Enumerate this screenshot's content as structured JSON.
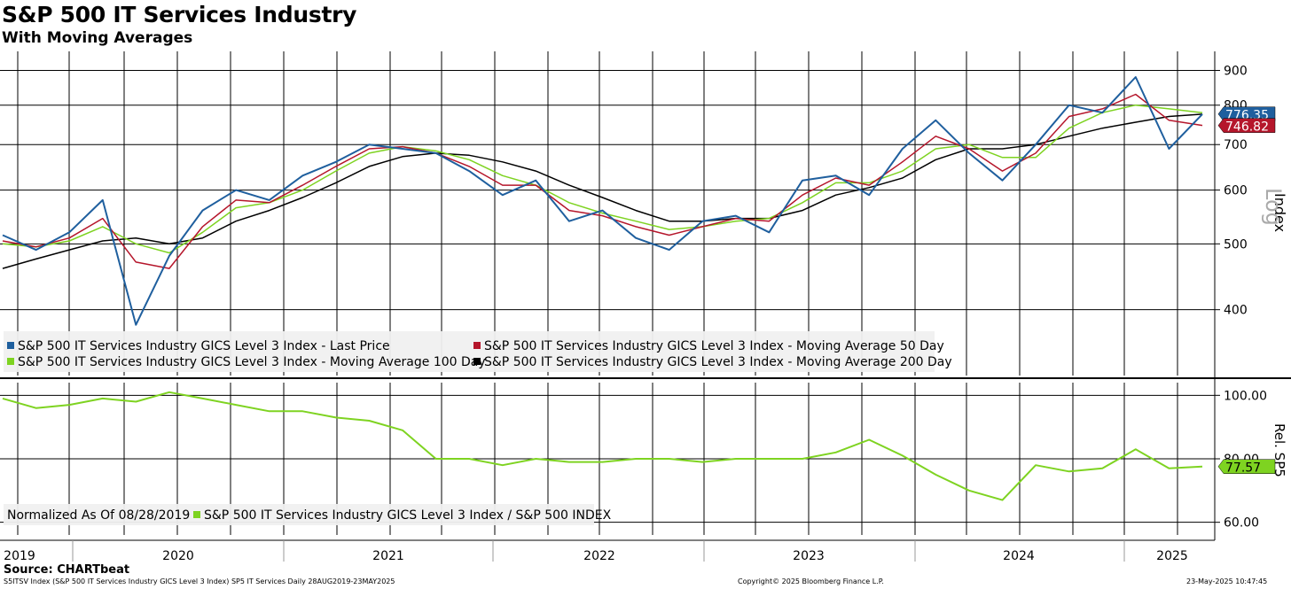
{
  "header": {
    "title": "S&P 500 IT Services Industry",
    "subtitle": "With Moving Averages"
  },
  "source": "Source: CHARTbeat",
  "footer": {
    "left": "S5ITSV Index (S&P 500 IT Services Industry GICS Level 3 Index) SP5 IT Services  Daily 28AUG2019-23MAY2025",
    "center": "Copyright© 2025 Bloomberg Finance L.P.",
    "right": "23-May-2025 10:47:45"
  },
  "colors": {
    "last_price": "#1f5f9e",
    "ma50": "#b5162b",
    "ma100": "#7ed321",
    "ma200": "#000000"
  },
  "chart_data": [
    {
      "type": "line",
      "panel": "price",
      "scale": "log",
      "axis_title": "Index",
      "axis_note": "Log",
      "ylim": [
        320,
        960
      ],
      "y_ticks": [
        "900",
        "800",
        "700",
        "600",
        "500",
        "400"
      ],
      "x_tick_labels": [
        "2019",
        "2020",
        "2021",
        "2022",
        "2023",
        "2024",
        "2025"
      ],
      "x": [
        "2019-08",
        "2019-10",
        "2019-12",
        "2020-02",
        "2020-03",
        "2020-04",
        "2020-06",
        "2020-08",
        "2020-10",
        "2020-12",
        "2021-02",
        "2021-04",
        "2021-06",
        "2021-08",
        "2021-10",
        "2021-12",
        "2022-02",
        "2022-04",
        "2022-06",
        "2022-08",
        "2022-10",
        "2022-12",
        "2023-02",
        "2023-04",
        "2023-06",
        "2023-08",
        "2023-10",
        "2023-12",
        "2024-02",
        "2024-04",
        "2024-06",
        "2024-08",
        "2024-10",
        "2024-12",
        "2025-02",
        "2025-04",
        "2025-05"
      ],
      "series": [
        {
          "name": "S&P 500 IT Services Industry GICS Level 3 Index - Last Price",
          "color_key": "last_price",
          "values": [
            515,
            490,
            520,
            580,
            380,
            480,
            560,
            600,
            580,
            630,
            660,
            700,
            690,
            680,
            640,
            590,
            620,
            540,
            560,
            510,
            490,
            540,
            550,
            520,
            620,
            630,
            590,
            690,
            760,
            680,
            620,
            700,
            800,
            780,
            880,
            690,
            776
          ]
        },
        {
          "name": "S&P 500 IT Services Industry GICS Level 3 Index - Moving Average 50 Day",
          "color_key": "ma50",
          "values": [
            505,
            495,
            510,
            545,
            470,
            460,
            530,
            580,
            575,
            610,
            650,
            690,
            695,
            680,
            650,
            610,
            610,
            560,
            550,
            530,
            515,
            530,
            545,
            540,
            590,
            625,
            610,
            660,
            720,
            690,
            640,
            680,
            770,
            790,
            830,
            760,
            747
          ]
        },
        {
          "name": "S&P 500 IT Services Industry GICS Level 3 Index - Moving Average 100 Day",
          "color_key": "ma100",
          "values": [
            500,
            495,
            505,
            530,
            500,
            485,
            520,
            565,
            575,
            600,
            640,
            680,
            695,
            685,
            665,
            630,
            610,
            575,
            555,
            540,
            525,
            530,
            540,
            545,
            575,
            615,
            615,
            640,
            690,
            700,
            670,
            670,
            740,
            780,
            800,
            790,
            780
          ]
        },
        {
          "name": "S&P 500 IT Services Industry GICS Level 3 Index - Moving Average 200 Day",
          "color_key": "ma200",
          "values": [
            460,
            475,
            490,
            505,
            510,
            500,
            510,
            540,
            560,
            585,
            615,
            650,
            672,
            680,
            675,
            660,
            640,
            610,
            585,
            560,
            540,
            540,
            545,
            545,
            560,
            590,
            605,
            625,
            665,
            690,
            690,
            700,
            720,
            740,
            755,
            770,
            776
          ]
        }
      ],
      "last_value_labels": [
        {
          "series": "last_price",
          "value": 776.35,
          "text": "776.35"
        },
        {
          "series": "ma50",
          "value": 746.82,
          "text": "746.82"
        }
      ],
      "legend": [
        {
          "label": "S&P 500 IT Services Industry GICS Level 3 Index - Last Price",
          "color_key": "last_price"
        },
        {
          "label": "S&P 500 IT Services Industry GICS Level 3 Index - Moving Average 50 Day",
          "color_key": "ma50"
        },
        {
          "label": "S&P 500 IT Services Industry GICS Level 3 Index - Moving Average 100 Day",
          "color_key": "ma100"
        },
        {
          "label": "S&P 500 IT Services Industry GICS Level 3 Index - Moving Average 200 Day",
          "color_key": "ma200"
        }
      ]
    },
    {
      "type": "line",
      "panel": "relative",
      "axis_title": "Rel. SP5",
      "ylim": [
        56,
        104
      ],
      "y_ticks": [
        "100.00",
        "80.00",
        "60.00"
      ],
      "legend_note": "Normalized As Of 08/28/2019",
      "series": [
        {
          "name": "S&P 500 IT Services Industry GICS Level 3 Index / S&P 500 INDEX",
          "color_key": "ma100",
          "values": [
            99,
            96,
            97,
            99,
            98,
            101,
            99,
            97,
            95,
            95,
            93,
            92,
            89,
            80,
            80,
            78,
            80,
            79,
            79,
            80,
            80,
            79,
            80,
            80,
            80,
            82,
            86,
            81,
            75,
            70,
            67,
            78,
            76,
            77,
            83,
            77,
            77.57
          ]
        }
      ],
      "last_value_labels": [
        {
          "series": "ma100",
          "value": 77.57,
          "text": "77.57"
        }
      ],
      "legend": [
        {
          "label": "S&P 500 IT Services Industry GICS Level 3 Index / S&P 500 INDEX",
          "color_key": "ma100"
        }
      ]
    }
  ]
}
